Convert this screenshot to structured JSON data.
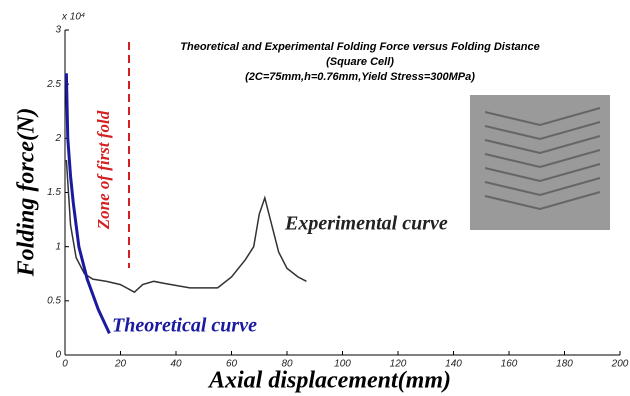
{
  "chart_data": {
    "type": "line",
    "title": "Theoretical and Experimental Folding Force versus Folding Distance",
    "subtitle": [
      "(Square Cell)",
      "(2C=75mm,h=0.76mm,Yield Stress=300MPa)"
    ],
    "x_label": "Axial displacement(mm)",
    "y_label": "Folding force(N)",
    "y_multiplier": "x 10⁴",
    "annotation": "Zone of first fold",
    "xlim": [
      0,
      200
    ],
    "xticks": [
      0,
      20,
      40,
      60,
      80,
      100,
      120,
      140,
      160,
      180,
      200
    ],
    "ylim": [
      0,
      3
    ],
    "yticks": [
      0,
      0.5,
      1,
      1.5,
      2,
      2.5,
      3
    ],
    "series": [
      {
        "name": "Experimental curve",
        "color": "#333333",
        "x": [
          0.5,
          2,
          4,
          7,
          10,
          15,
          20,
          25,
          28,
          32,
          36,
          45,
          55,
          60,
          65,
          68,
          70,
          72,
          74,
          77,
          80,
          84,
          87
        ],
        "values": [
          1.8,
          1.2,
          0.9,
          0.75,
          0.7,
          0.68,
          0.65,
          0.58,
          0.65,
          0.68,
          0.66,
          0.62,
          0.62,
          0.72,
          0.88,
          1.0,
          1.3,
          1.45,
          1.25,
          0.95,
          0.8,
          0.72,
          0.68
        ]
      },
      {
        "name": "Theoretical curve",
        "color": "#1a1aa0",
        "x": [
          0.5,
          1,
          2,
          3,
          5,
          8,
          12,
          16
        ],
        "values": [
          2.6,
          2.0,
          1.65,
          1.4,
          1.0,
          0.7,
          0.42,
          0.2
        ]
      }
    ]
  }
}
